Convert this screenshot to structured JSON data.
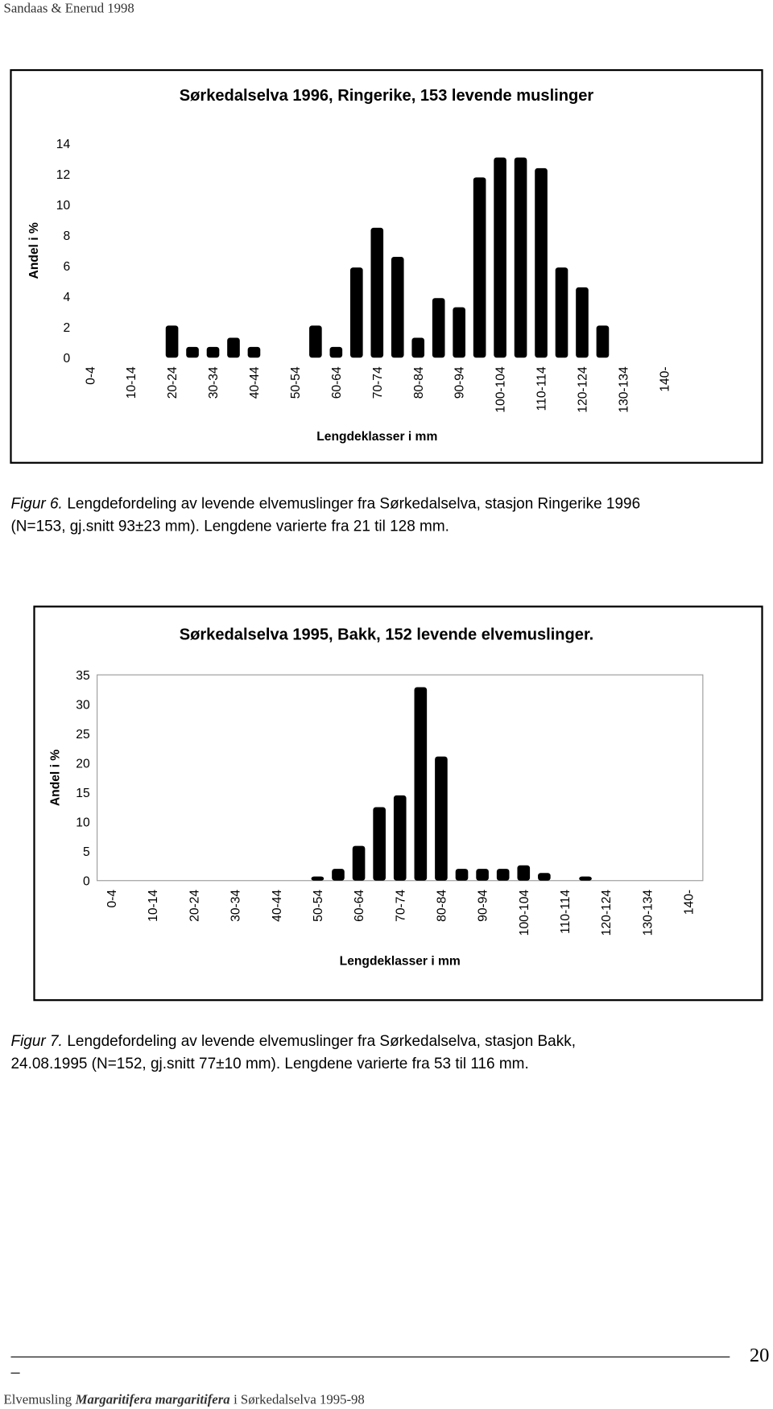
{
  "header": {
    "text": "Sandaas & Enerud 1998"
  },
  "chart_data": [
    {
      "type": "bar",
      "title": "Sørkedalselva 1996, Ringerike, 153 levende muslinger",
      "x_label": "Lengdeklasser i mm",
      "y_label": "Andel i %",
      "categories": [
        "0-4",
        null,
        "10-14",
        null,
        "20-24",
        null,
        "30-34",
        null,
        "40-44",
        null,
        "50-54",
        null,
        "60-64",
        null,
        "70-74",
        null,
        "80-84",
        null,
        "90-94",
        null,
        "100-104",
        null,
        "110-114",
        null,
        "120-124",
        null,
        "130-134",
        null,
        "140-"
      ],
      "values": [
        0,
        0,
        0,
        0,
        2.1,
        0.7,
        0.7,
        1.3,
        0.7,
        0,
        0,
        2.1,
        0.7,
        5.9,
        8.5,
        6.6,
        1.3,
        3.9,
        3.3,
        11.8,
        13.1,
        13.1,
        12.4,
        5.9,
        4.6,
        2.1,
        0,
        0,
        0
      ],
      "color": "#000000",
      "ylim": [
        0,
        14
      ],
      "yticks": [
        0,
        2,
        4,
        6,
        8,
        10,
        12,
        14
      ]
    },
    {
      "type": "bar",
      "title": "Sørkedalselva 1995, Bakk, 152 levende elvemuslinger.",
      "x_label": "Lengdeklasser i mm",
      "y_label": "Andel i %",
      "categories": [
        "0-4",
        null,
        "10-14",
        null,
        "20-24",
        null,
        "30-34",
        null,
        "40-44",
        null,
        "50-54",
        null,
        "60-64",
        null,
        "70-74",
        null,
        "80-84",
        null,
        "90-94",
        null,
        "100-104",
        null,
        "110-114",
        null,
        "120-124",
        null,
        "130-134",
        null,
        "140-"
      ],
      "values": [
        0,
        0,
        0,
        0,
        0,
        0,
        0,
        0,
        0,
        0,
        0.7,
        2.0,
        5.9,
        12.5,
        14.5,
        32.9,
        21.1,
        2.0,
        2.0,
        2.0,
        2.6,
        1.3,
        0,
        0.7,
        0,
        0,
        0,
        0,
        0
      ],
      "color": "#000000",
      "ylim": [
        0,
        35
      ],
      "yticks": [
        0,
        5,
        10,
        15,
        20,
        25,
        30,
        35
      ]
    }
  ],
  "captions": [
    {
      "label": "Figur 6.",
      "lines": [
        "Lengdefordeling av levende elvemuslinger fra Sørkedalselva, stasjon Ringerike 1996",
        "(N=153, gj.snitt 93±23 mm). Lengdene varierte fra 21 til 128 mm."
      ]
    },
    {
      "label": "Figur 7.",
      "lines": [
        "Lengdefordeling av levende elvemuslinger fra Sørkedalselva, stasjon Bakk,",
        "24.08.1995 (N=152, gj.snitt 77±10 mm). Lengdene varierte fra 53 til 116 mm."
      ]
    }
  ],
  "footer": {
    "page": "20",
    "parts": [
      "Elvemusling",
      "Margaritifera margaritifera",
      "i Sørkedalselva 1995-98"
    ]
  }
}
